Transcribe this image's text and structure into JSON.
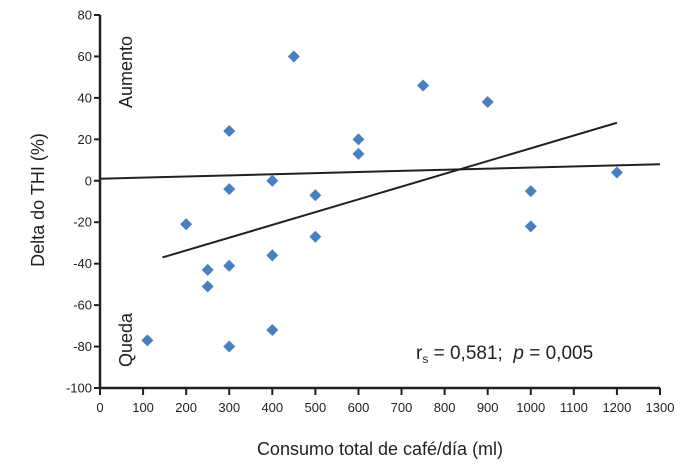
{
  "chart_data": {
    "type": "scatter",
    "xlabel": "Consumo total de café/día (ml)",
    "ylabel": "Delta do THI (%)",
    "xlim": [
      0,
      1300
    ],
    "ylim": [
      -100,
      80
    ],
    "xticks": [
      0,
      100,
      200,
      300,
      400,
      500,
      600,
      700,
      800,
      900,
      1000,
      1100,
      1200,
      1300
    ],
    "yticks": [
      80,
      60,
      40,
      20,
      0,
      -20,
      -40,
      -60,
      -80,
      -100
    ],
    "grid": false,
    "marker_color": "#4a7fbf",
    "points": [
      {
        "x": 110,
        "y": -77
      },
      {
        "x": 200,
        "y": -21
      },
      {
        "x": 250,
        "y": -43
      },
      {
        "x": 250,
        "y": -51
      },
      {
        "x": 300,
        "y": 24
      },
      {
        "x": 300,
        "y": -4
      },
      {
        "x": 300,
        "y": -41
      },
      {
        "x": 300,
        "y": -80
      },
      {
        "x": 400,
        "y": 0
      },
      {
        "x": 400,
        "y": -36
      },
      {
        "x": 400,
        "y": -72
      },
      {
        "x": 450,
        "y": 60
      },
      {
        "x": 500,
        "y": -7
      },
      {
        "x": 500,
        "y": -27
      },
      {
        "x": 600,
        "y": 20
      },
      {
        "x": 600,
        "y": 13
      },
      {
        "x": 750,
        "y": 46
      },
      {
        "x": 900,
        "y": 38
      },
      {
        "x": 1000,
        "y": -5
      },
      {
        "x": 1000,
        "y": -22
      },
      {
        "x": 1200,
        "y": 4
      }
    ],
    "lines": [
      {
        "name": "reference",
        "x": [
          0,
          1300
        ],
        "y": [
          1,
          8
        ]
      },
      {
        "name": "regression",
        "x": [
          145,
          1200
        ],
        "y": [
          -37,
          28
        ]
      }
    ],
    "annotations": {
      "increase": "Aumento",
      "decrease": "Queda",
      "stat_r": "r",
      "stat_r_sub": "s",
      "stat_r_value": " = 0,581;  ",
      "stat_p": "p",
      "stat_p_value": " = 0,005"
    }
  }
}
